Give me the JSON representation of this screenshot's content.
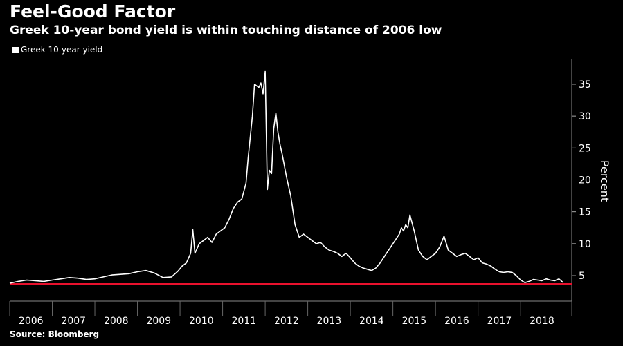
{
  "header": {
    "title": "Feel-Good Factor",
    "subtitle": "Greek 10-year bond yield is within touching distance of 2006 low"
  },
  "footer": {
    "source": "Source: Bloomberg"
  },
  "colors": {
    "background": "#000000",
    "series": "#ffffff",
    "reference_line": "#e8112d",
    "grid": "#555555"
  },
  "chart_data": {
    "type": "line",
    "title": "Feel-Good Factor",
    "subtitle": "Greek 10-year bond yield is within touching distance of 2006 low",
    "ylabel": "Percent",
    "xlabel": "",
    "xlim": [
      2006.0,
      2019.2
    ],
    "ylim": [
      1,
      39
    ],
    "y_ticks": [
      5,
      10,
      15,
      20,
      25,
      30,
      35
    ],
    "x_ticks": [
      "2006",
      "2007",
      "2008",
      "2009",
      "2010",
      "2011",
      "2012",
      "2013",
      "2014",
      "2015",
      "2016",
      "2017",
      "2018"
    ],
    "grid": false,
    "legend_position": "top-left",
    "reference_line": {
      "y": 3.7
    },
    "series": [
      {
        "name": "Greek 10-year yield",
        "x": [
          2006.0,
          2006.2,
          2006.4,
          2006.6,
          2006.8,
          2007.0,
          2007.2,
          2007.4,
          2007.6,
          2007.8,
          2008.0,
          2008.2,
          2008.4,
          2008.6,
          2008.8,
          2009.0,
          2009.2,
          2009.4,
          2009.6,
          2009.8,
          2009.95,
          2010.05,
          2010.15,
          2010.25,
          2010.3,
          2010.35,
          2010.45,
          2010.55,
          2010.65,
          2010.75,
          2010.85,
          2010.95,
          2011.05,
          2011.15,
          2011.25,
          2011.35,
          2011.45,
          2011.55,
          2011.6,
          2011.7,
          2011.75,
          2011.85,
          2011.9,
          2011.95,
          2012.0,
          2012.05,
          2012.1,
          2012.15,
          2012.2,
          2012.25,
          2012.3,
          2012.35,
          2012.4,
          2012.5,
          2012.6,
          2012.7,
          2012.8,
          2012.9,
          2013.0,
          2013.1,
          2013.2,
          2013.3,
          2013.4,
          2013.5,
          2013.6,
          2013.7,
          2013.8,
          2013.9,
          2014.0,
          2014.1,
          2014.2,
          2014.3,
          2014.4,
          2014.5,
          2014.6,
          2014.7,
          2014.8,
          2014.9,
          2015.0,
          2015.05,
          2015.1,
          2015.15,
          2015.2,
          2015.25,
          2015.3,
          2015.35,
          2015.4,
          2015.5,
          2015.6,
          2015.7,
          2015.8,
          2015.9,
          2016.0,
          2016.1,
          2016.2,
          2016.3,
          2016.4,
          2016.5,
          2016.6,
          2016.7,
          2016.8,
          2016.9,
          2017.0,
          2017.1,
          2017.2,
          2017.3,
          2017.4,
          2017.5,
          2017.6,
          2017.7,
          2017.8,
          2017.9,
          2018.0,
          2018.1,
          2018.2,
          2018.3,
          2018.4,
          2018.5,
          2018.6,
          2018.7,
          2018.8,
          2018.9,
          2019.0
        ],
        "values": [
          3.8,
          4.1,
          4.3,
          4.2,
          4.1,
          4.3,
          4.5,
          4.7,
          4.6,
          4.4,
          4.5,
          4.8,
          5.1,
          5.2,
          5.3,
          5.6,
          5.8,
          5.4,
          4.7,
          4.8,
          5.7,
          6.5,
          7.0,
          8.5,
          12.2,
          8.5,
          10.0,
          10.5,
          11.0,
          10.2,
          11.5,
          12.0,
          12.5,
          13.8,
          15.5,
          16.5,
          17.0,
          19.5,
          23.5,
          30.0,
          35.0,
          34.5,
          35.2,
          33.5,
          37.0,
          18.5,
          21.5,
          21.0,
          28.0,
          30.5,
          27.5,
          25.5,
          24.0,
          20.5,
          17.5,
          13.0,
          11.0,
          11.5,
          11.0,
          10.5,
          10.0,
          10.2,
          9.5,
          9.0,
          8.8,
          8.5,
          8.0,
          8.5,
          7.8,
          7.0,
          6.5,
          6.2,
          6.0,
          5.8,
          6.2,
          7.0,
          8.0,
          9.0,
          10.0,
          10.5,
          11.0,
          11.5,
          12.5,
          12.0,
          13.0,
          12.5,
          14.5,
          12.0,
          9.0,
          8.0,
          7.5,
          8.0,
          8.5,
          9.5,
          11.2,
          9.0,
          8.5,
          8.0,
          8.3,
          8.5,
          8.0,
          7.5,
          7.8,
          7.0,
          6.8,
          6.5,
          6.0,
          5.6,
          5.5,
          5.6,
          5.5,
          5.0,
          4.3,
          3.9,
          4.1,
          4.4,
          4.3,
          4.2,
          4.5,
          4.3,
          4.2,
          4.5,
          3.9
        ]
      }
    ]
  }
}
